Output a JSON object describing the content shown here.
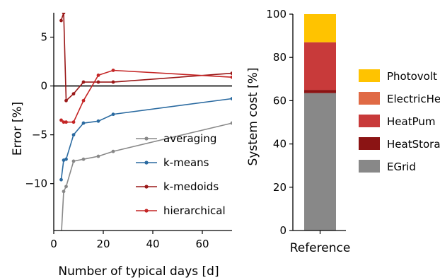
{
  "chart_data": [
    {
      "type": "line",
      "xlabel": "Number of typical days [d]",
      "ylabel": "Error [%]",
      "xlim": [
        0,
        72
      ],
      "ylim": [
        -14.8,
        7.5
      ],
      "xticks": [
        0,
        20,
        40,
        60
      ],
      "yticks": [
        5,
        0,
        -5,
        -10
      ],
      "xtick_labels": [
        "0",
        "20",
        "40",
        "60"
      ],
      "ytick_labels": [
        "5",
        "0",
        "−5",
        "−10"
      ],
      "legend_position": "lower-right",
      "series": [
        {
          "name": "averaging",
          "color": "#888888",
          "x": [
            3,
            4,
            5,
            8,
            12,
            18,
            24,
            72
          ],
          "y": [
            -15.5,
            -10.8,
            -10.3,
            -7.7,
            -7.5,
            -7.2,
            -6.7,
            -3.8
          ]
        },
        {
          "name": "k-means",
          "color": "#2a6aa0",
          "x": [
            3,
            4,
            5,
            8,
            12,
            18,
            24,
            72
          ],
          "y": [
            -9.6,
            -7.6,
            -7.5,
            -5.0,
            -3.8,
            -3.6,
            -2.9,
            -1.3
          ]
        },
        {
          "name": "k-medoids",
          "color": "#9a1818",
          "x": [
            3,
            4,
            5,
            8,
            12,
            18,
            24,
            72
          ],
          "y": [
            6.7,
            7.5,
            -1.5,
            -0.8,
            0.4,
            0.4,
            0.4,
            1.3
          ]
        },
        {
          "name": "hierarchical",
          "color": "#c42525",
          "x": [
            3,
            4,
            5,
            8,
            12,
            18,
            24,
            72
          ],
          "y": [
            -3.5,
            -3.7,
            -3.7,
            -3.7,
            -1.5,
            1.1,
            1.6,
            0.9
          ]
        }
      ]
    },
    {
      "type": "bar",
      "stacked": true,
      "ylabel": "System cost [%]",
      "ylim": [
        0,
        100
      ],
      "yticks": [
        0,
        20,
        40,
        60,
        80,
        100
      ],
      "ytick_labels": [
        "0",
        "20",
        "40",
        "60",
        "80",
        "100"
      ],
      "categories": [
        "Reference"
      ],
      "legend_position": "right",
      "series": [
        {
          "name": "EGrid",
          "color": "#888888",
          "values": [
            63.5
          ]
        },
        {
          "name": "HeatStora",
          "color": "#8b1414",
          "values": [
            1.5
          ]
        },
        {
          "name": "HeatPum",
          "color": "#c83a3a",
          "values": [
            22
          ]
        },
        {
          "name": "ElectricHe",
          "color": "#e06a45",
          "values": [
            0
          ]
        },
        {
          "name": "Photovolt",
          "color": "#ffc300",
          "values": [
            13
          ]
        }
      ],
      "legend_order": [
        "Photovolt",
        "ElectricHe",
        "HeatPum",
        "HeatStora",
        "EGrid"
      ]
    }
  ]
}
